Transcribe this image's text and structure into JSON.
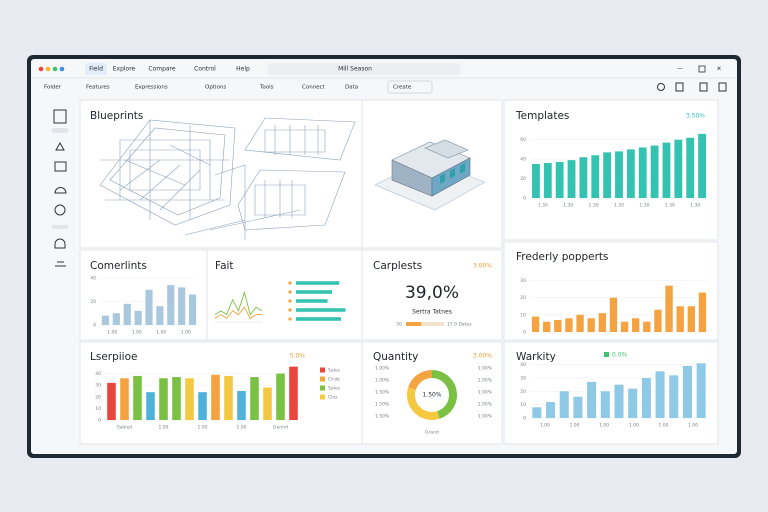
{
  "window": {
    "tabs": [
      "Field",
      "Explore",
      "Compare",
      "Control",
      "Help"
    ],
    "search": "Mill Season",
    "toolbar": [
      "Folder",
      "Features",
      "Expressions",
      "Options",
      "Tools",
      "Connect",
      "Data",
      "Create"
    ]
  },
  "panels": {
    "blueprints": {
      "title": "Blueprints"
    },
    "templates": {
      "title": "Templates",
      "badge": "3.50%",
      "type": "bar",
      "color": "#34c3b0",
      "values": [
        35,
        36,
        37,
        39,
        42,
        44,
        47,
        48,
        50,
        52,
        54,
        57,
        60,
        62,
        66
      ],
      "ylim": [
        0,
        70
      ],
      "yticks": [
        0,
        20,
        40,
        60
      ],
      "xlabels": [
        "1.30",
        "1.30",
        "1.30",
        "1.30",
        "1.30",
        "1.30",
        "1.30"
      ]
    },
    "comerlints": {
      "title": "Comerlints",
      "type": "bar",
      "color": "#a9c8de",
      "values": [
        8,
        10,
        18,
        12,
        30,
        16,
        34,
        32,
        26
      ],
      "ylim": [
        0,
        40
      ],
      "yticks": [
        0,
        20,
        40
      ],
      "xlabels": [
        "1.00",
        "1.00",
        "1.00",
        "1.00"
      ]
    },
    "fait": {
      "title": "Fait",
      "type": "line",
      "series": [
        {
          "color": "#7ac143",
          "values": [
            2,
            3,
            2,
            6,
            3,
            8,
            2,
            4,
            3
          ]
        },
        {
          "color": "#f4a340",
          "values": [
            1,
            2,
            1,
            3,
            2,
            4,
            1,
            2,
            2
          ]
        }
      ],
      "ylim": [
        0,
        10
      ],
      "bars": {
        "color": "#34c3b0",
        "values": [
          48,
          40,
          35,
          55,
          50
        ],
        "xlim": [
          0,
          60
        ]
      }
    },
    "carplests": {
      "title": "Carplests",
      "badge": "3.00%",
      "value": "39,0%",
      "caption": "Sertra Tatnes",
      "progress": 40,
      "progress_label": "50",
      "progress_note": "17.0 Datas"
    },
    "frederly": {
      "title": "Frederly popperts",
      "type": "bar",
      "color": "#f4a340",
      "values": [
        9,
        6,
        7,
        8,
        10,
        8,
        11,
        20,
        6,
        8,
        6,
        13,
        27,
        15,
        15,
        23
      ],
      "ylim": [
        0,
        35
      ],
      "yticks": [
        0,
        10,
        20,
        30
      ]
    },
    "lserpiioe": {
      "title": "Lserpiioe",
      "badge": "5.0%",
      "type": "bar",
      "values": [
        32,
        36,
        38,
        24,
        36,
        37,
        36,
        24,
        39,
        38,
        25,
        37,
        28,
        40,
        46
      ],
      "colors": [
        "#e8453c",
        "#f4a340",
        "#7ac143",
        "#4fb3d9",
        "#7ac143",
        "#7ac143",
        "#f5c842",
        "#4fb3d9",
        "#f4a340",
        "#f5c842",
        "#4fb3d9",
        "#7ac143",
        "#f5c842",
        "#7ac143",
        "#e8453c"
      ],
      "ylim": [
        0,
        50
      ],
      "yticks": [
        0,
        10,
        20,
        30,
        40
      ],
      "xlabels": [
        "Sabled",
        "1.00",
        "1.00",
        "1.00",
        "Gerind"
      ],
      "legend": [
        {
          "name": "Sales",
          "color": "#e8453c"
        },
        {
          "name": "Clrab",
          "color": "#f4a340"
        },
        {
          "name": "Sales",
          "color": "#7ac143"
        },
        {
          "name": "Clos",
          "color": "#f5c842"
        }
      ]
    },
    "quantity": {
      "title": "Quantity",
      "badge": "3.00%",
      "type": "pie",
      "center": "1.50%",
      "caption": "Grand",
      "values": [
        45,
        35,
        20
      ],
      "colors": [
        "#7ac143",
        "#f5c842",
        "#f4a340"
      ],
      "left_labels": [
        "1.00%",
        "1.00%",
        "1.50%",
        "1.50%",
        "1.50%"
      ],
      "right_labels": [
        "1.00%",
        "1.00%",
        "1.00%",
        "1.00%",
        "1.00%"
      ]
    },
    "warkity": {
      "title": "Warkity",
      "badge": "0.0%",
      "type": "bar",
      "color": "#8ecae6",
      "values": [
        8,
        12,
        20,
        16,
        27,
        20,
        25,
        22,
        30,
        35,
        32,
        39,
        41
      ],
      "ylim": [
        0,
        45
      ],
      "yticks": [
        0,
        10,
        20,
        30,
        40
      ],
      "xlabels": [
        "1.00",
        "1.00",
        "1.00",
        "1.00",
        "1.00",
        "1.00"
      ]
    }
  }
}
